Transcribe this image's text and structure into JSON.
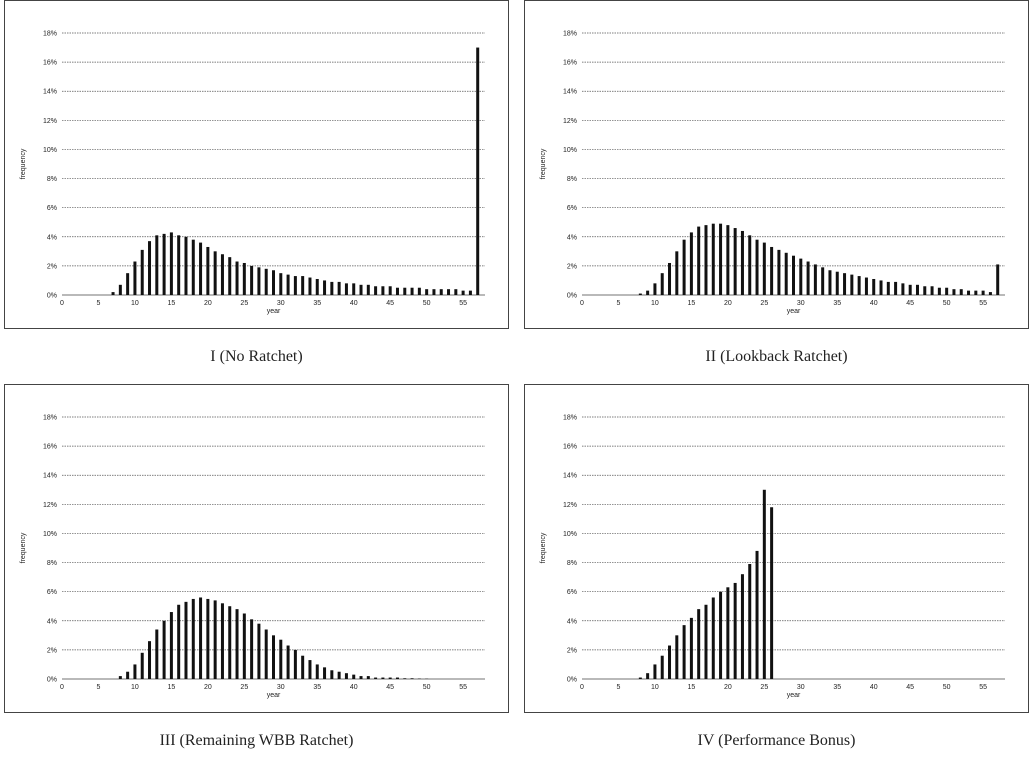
{
  "chart_data": [
    {
      "type": "bar",
      "caption": "I (No Ratchet)",
      "xlabel": "year",
      "ylabel": "frequency",
      "xlim": [
        0,
        58
      ],
      "ylim": [
        0,
        0.18
      ],
      "x_ticks": [
        0,
        5,
        10,
        15,
        20,
        25,
        30,
        35,
        40,
        45,
        50,
        55
      ],
      "y_ticks": [
        "0%",
        "2%",
        "4%",
        "6%",
        "8%",
        "10%",
        "12%",
        "14%",
        "16%",
        "18%"
      ],
      "grid": "horizontal",
      "x": [
        7,
        8,
        9,
        10,
        11,
        12,
        13,
        14,
        15,
        16,
        17,
        18,
        19,
        20,
        21,
        22,
        23,
        24,
        25,
        26,
        27,
        28,
        29,
        30,
        31,
        32,
        33,
        34,
        35,
        36,
        37,
        38,
        39,
        40,
        41,
        42,
        43,
        44,
        45,
        46,
        47,
        48,
        49,
        50,
        51,
        52,
        53,
        54,
        55,
        56,
        57
      ],
      "values": [
        0.002,
        0.007,
        0.015,
        0.023,
        0.031,
        0.037,
        0.041,
        0.042,
        0.043,
        0.041,
        0.04,
        0.038,
        0.036,
        0.033,
        0.03,
        0.028,
        0.026,
        0.023,
        0.022,
        0.02,
        0.019,
        0.018,
        0.017,
        0.015,
        0.014,
        0.013,
        0.013,
        0.012,
        0.011,
        0.01,
        0.009,
        0.009,
        0.008,
        0.008,
        0.007,
        0.007,
        0.006,
        0.006,
        0.006,
        0.005,
        0.005,
        0.005,
        0.005,
        0.004,
        0.004,
        0.004,
        0.004,
        0.004,
        0.003,
        0.003,
        0.17
      ]
    },
    {
      "type": "bar",
      "caption": "II (Lookback Ratchet)",
      "xlabel": "year",
      "ylabel": "frequency",
      "xlim": [
        0,
        58
      ],
      "ylim": [
        0,
        0.18
      ],
      "x_ticks": [
        0,
        5,
        10,
        15,
        20,
        25,
        30,
        35,
        40,
        45,
        50,
        55
      ],
      "y_ticks": [
        "0%",
        "2%",
        "4%",
        "6%",
        "8%",
        "10%",
        "12%",
        "14%",
        "16%",
        "18%"
      ],
      "grid": "horizontal",
      "x": [
        8,
        9,
        10,
        11,
        12,
        13,
        14,
        15,
        16,
        17,
        18,
        19,
        20,
        21,
        22,
        23,
        24,
        25,
        26,
        27,
        28,
        29,
        30,
        31,
        32,
        33,
        34,
        35,
        36,
        37,
        38,
        39,
        40,
        41,
        42,
        43,
        44,
        45,
        46,
        47,
        48,
        49,
        50,
        51,
        52,
        53,
        54,
        55,
        56,
        57
      ],
      "values": [
        0.001,
        0.003,
        0.008,
        0.015,
        0.022,
        0.03,
        0.038,
        0.043,
        0.047,
        0.048,
        0.049,
        0.049,
        0.048,
        0.046,
        0.044,
        0.041,
        0.038,
        0.036,
        0.033,
        0.031,
        0.029,
        0.027,
        0.025,
        0.023,
        0.021,
        0.019,
        0.017,
        0.016,
        0.015,
        0.014,
        0.013,
        0.012,
        0.011,
        0.01,
        0.009,
        0.009,
        0.008,
        0.007,
        0.007,
        0.006,
        0.006,
        0.005,
        0.005,
        0.004,
        0.004,
        0.003,
        0.003,
        0.003,
        0.002,
        0.021
      ]
    },
    {
      "type": "bar",
      "caption": "III (Remaining WBB Ratchet)",
      "xlabel": "year",
      "ylabel": "frequency",
      "xlim": [
        0,
        58
      ],
      "ylim": [
        0,
        0.18
      ],
      "x_ticks": [
        0,
        5,
        10,
        15,
        20,
        25,
        30,
        35,
        40,
        45,
        50,
        55
      ],
      "y_ticks": [
        "0%",
        "2%",
        "4%",
        "6%",
        "8%",
        "10%",
        "12%",
        "14%",
        "16%",
        "18%"
      ],
      "grid": "horizontal",
      "x": [
        8,
        9,
        10,
        11,
        12,
        13,
        14,
        15,
        16,
        17,
        18,
        19,
        20,
        21,
        22,
        23,
        24,
        25,
        26,
        27,
        28,
        29,
        30,
        31,
        32,
        33,
        34,
        35,
        36,
        37,
        38,
        39,
        40,
        41,
        42,
        43,
        44,
        45,
        46,
        47,
        48,
        49,
        50
      ],
      "values": [
        0.002,
        0.005,
        0.01,
        0.018,
        0.026,
        0.034,
        0.04,
        0.046,
        0.051,
        0.053,
        0.055,
        0.056,
        0.055,
        0.054,
        0.052,
        0.05,
        0.048,
        0.045,
        0.041,
        0.038,
        0.034,
        0.03,
        0.027,
        0.023,
        0.02,
        0.016,
        0.013,
        0.01,
        0.008,
        0.006,
        0.005,
        0.004,
        0.003,
        0.002,
        0.002,
        0.001,
        0.001,
        0.001,
        0.001,
        0.0005,
        0.0005,
        0.0003,
        0.0002
      ]
    },
    {
      "type": "bar",
      "caption": "IV (Performance Bonus)",
      "xlabel": "year",
      "ylabel": "frequency",
      "xlim": [
        0,
        58
      ],
      "ylim": [
        0,
        0.18
      ],
      "x_ticks": [
        0,
        5,
        10,
        15,
        20,
        25,
        30,
        35,
        40,
        45,
        50,
        55
      ],
      "y_ticks": [
        "0%",
        "2%",
        "4%",
        "6%",
        "8%",
        "10%",
        "12%",
        "14%",
        "16%",
        "18%"
      ],
      "grid": "horizontal",
      "x": [
        8,
        9,
        10,
        11,
        12,
        13,
        14,
        15,
        16,
        17,
        18,
        19,
        20,
        21,
        22,
        23,
        24,
        25,
        26
      ],
      "values": [
        0.001,
        0.004,
        0.01,
        0.016,
        0.023,
        0.03,
        0.037,
        0.042,
        0.048,
        0.051,
        0.056,
        0.06,
        0.063,
        0.066,
        0.072,
        0.079,
        0.088,
        0.13,
        0.118
      ]
    }
  ]
}
